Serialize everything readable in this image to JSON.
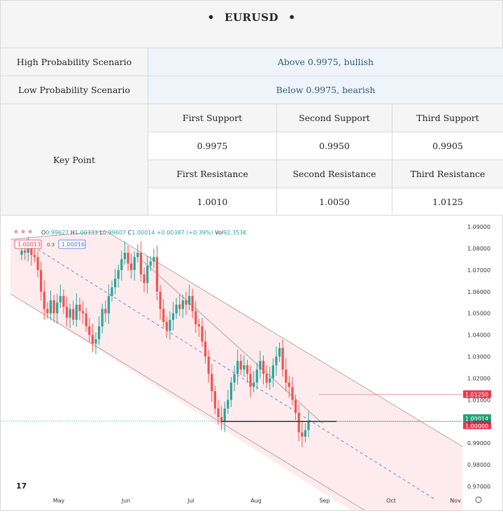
{
  "title": {
    "symbol": "EURUSD",
    "bullet": "•"
  },
  "scenarios": [
    {
      "label": "High Probability Scenario",
      "value": "Above 0.9975, bullish"
    },
    {
      "label": "Low Probability Scenario",
      "value": "Below 0.9975, bearish"
    }
  ],
  "key_point": {
    "label": "Key Point",
    "support_headers": [
      "First Support",
      "Second Support",
      "Third Support"
    ],
    "support_values": [
      "0.9975",
      "0.9950",
      "0.9905"
    ],
    "resistance_headers": [
      "First Resistance",
      "Second Resistance",
      "Third Resistance"
    ],
    "resistance_values": [
      "1.0010",
      "1.0050",
      "1.0125"
    ]
  },
  "chart_data": {
    "type": "candlestick",
    "ohlc_legend": {
      "o": "O",
      "o_val": "0.99627",
      "h": "H",
      "h_val": "1.00333",
      "l": "L",
      "l_val": "0.99607",
      "c": "C",
      "c_val": "1.00014",
      "change": "+0.00387 (+0.39%)",
      "vol": "Vol",
      "vol_val": "92.353K"
    },
    "price_boxes": {
      "sell": "1.00013",
      "spread": "0.3",
      "buy": "1.00016"
    },
    "y_ticks": [
      "1.09000",
      "1.08000",
      "1.07000",
      "1.06000",
      "1.05000",
      "1.04000",
      "1.03000",
      "1.02000",
      "1.01000",
      "1.00000",
      "0.99000",
      "0.98000",
      "0.97000"
    ],
    "y_tick_values": [
      1.09,
      1.08,
      1.07,
      1.06,
      1.05,
      1.04,
      1.03,
      1.02,
      1.01,
      1.0,
      0.99,
      0.98,
      0.97
    ],
    "x_ticks": [
      "May",
      "Jun",
      "Jul",
      "Aug",
      "Sep",
      "Oct",
      "Nov"
    ],
    "price_tags": [
      {
        "label": "1.01250",
        "value": 1.0125,
        "color": "#e53950"
      },
      {
        "label": "1.00014",
        "value": 1.00014,
        "color": "#22a37a"
      },
      {
        "label": "1.00000",
        "value": 1.0,
        "color": "#e53950"
      }
    ],
    "colors": {
      "up": "#26a69a",
      "down": "#ef5350",
      "channel_fill": "#fde8ea"
    },
    "candles_close": [
      1.079,
      1.078,
      1.08,
      1.077,
      1.076,
      1.07,
      1.06,
      1.052,
      1.05,
      1.056,
      1.05,
      1.055,
      1.058,
      1.053,
      1.048,
      1.052,
      1.047,
      1.054,
      1.051,
      1.05,
      1.044,
      1.04,
      1.036,
      1.038,
      1.044,
      1.052,
      1.05,
      1.058,
      1.062,
      1.066,
      1.07,
      1.075,
      1.078,
      1.073,
      1.07,
      1.076,
      1.078,
      1.068,
      1.064,
      1.072,
      1.074,
      1.076,
      1.06,
      1.052,
      1.046,
      1.042,
      1.047,
      1.05,
      1.054,
      1.052,
      1.056,
      1.054,
      1.058,
      1.051,
      1.045,
      1.044,
      1.037,
      1.03,
      1.022,
      1.014,
      1.006,
      1.002,
      1.0,
      1.006,
      1.01,
      1.018,
      1.022,
      1.028,
      1.024,
      1.026,
      1.022,
      1.016,
      1.018,
      1.024,
      1.028,
      1.022,
      1.018,
      1.02,
      1.026,
      1.03,
      1.034,
      1.024,
      1.018,
      1.016,
      1.01,
      1.004,
      0.995,
      0.993,
      0.996,
      1.0
    ]
  }
}
